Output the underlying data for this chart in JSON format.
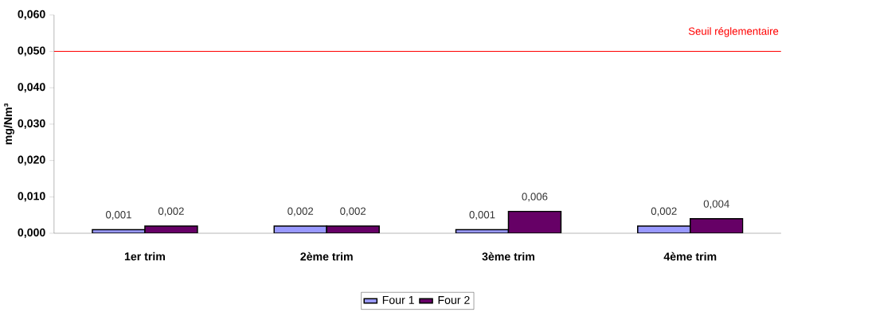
{
  "chart_data": {
    "type": "bar",
    "ylabel": "mg/Nm³",
    "categories": [
      "1er trim",
      "2ème trim",
      "3ème trim",
      "4ème trim"
    ],
    "series": [
      {
        "name": "Four 1",
        "color": "#9999ff",
        "values": [
          0.001,
          0.002,
          0.001,
          0.002
        ],
        "value_labels": [
          "0,001",
          "0,002",
          "0,001",
          "0,002"
        ]
      },
      {
        "name": "Four 2",
        "color": "#660066",
        "values": [
          0.002,
          0.002,
          0.006,
          0.004
        ],
        "value_labels": [
          "0,002",
          "0,002",
          "0,006",
          "0,004"
        ]
      }
    ],
    "ylim": [
      0,
      0.06
    ],
    "yticks": [
      {
        "value": 0,
        "label": "0,000"
      },
      {
        "value": 0.01,
        "label": "0,010"
      },
      {
        "value": 0.02,
        "label": "0,020"
      },
      {
        "value": 0.03,
        "label": "0,030"
      },
      {
        "value": 0.04,
        "label": "0,040"
      },
      {
        "value": 0.05,
        "label": "0,050"
      },
      {
        "value": 0.06,
        "label": "0,060"
      }
    ],
    "ref_lines": [
      {
        "axis": "y",
        "value": 0.05,
        "label": "Seuil réglementaire",
        "color": "#ff0000"
      }
    ],
    "grid": false,
    "legend": "bottom"
  }
}
